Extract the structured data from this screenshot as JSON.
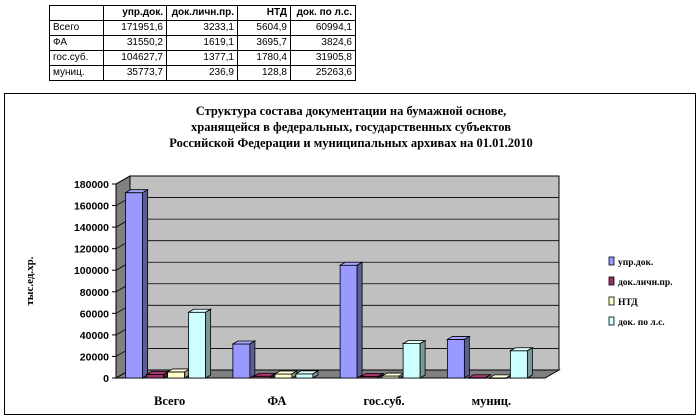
{
  "table": {
    "headers": [
      "",
      "упр.док.",
      "док.личн.пр.",
      "НТД",
      "док. по л.с."
    ],
    "rows": [
      [
        "Всего",
        "171951,6",
        "3233,1",
        "5604,9",
        "60994,1"
      ],
      [
        "ФА",
        "31550,2",
        "1619,1",
        "3695,7",
        "3824,6"
      ],
      [
        "гос.суб.",
        "104627,7",
        "1377,1",
        "1780,4",
        "31905,8"
      ],
      [
        "муниц.",
        "35773,7",
        "236,9",
        "128,8",
        "25263,6"
      ]
    ]
  },
  "chart_data": {
    "type": "bar",
    "title_lines": [
      "Структура состава документации на бумажной основе,",
      "хранящейся в федеральных, государственных субъектов",
      "Российской Федерации и муниципальных архивах на 01.01.2010"
    ],
    "ylabel": "тыс.ед.хр.",
    "xlabel": "",
    "ylim": [
      0,
      180000
    ],
    "yticks": [
      "0",
      "20000",
      "40000",
      "60000",
      "80000",
      "100000",
      "120000",
      "140000",
      "160000",
      "180000"
    ],
    "categories": [
      "Всего",
      "ФА",
      "гос.суб.",
      "муниц."
    ],
    "series": [
      {
        "name": "упр.док.",
        "color": "#9999FF",
        "values": [
          171951.6,
          31550.2,
          104627.7,
          35773.7
        ]
      },
      {
        "name": "док.личн.пр.",
        "color": "#993366",
        "values": [
          3233.1,
          1619.1,
          1377.1,
          236.9
        ]
      },
      {
        "name": "НТД",
        "color": "#FFFFCC",
        "values": [
          5604.9,
          3695.7,
          1780.4,
          128.8
        ]
      },
      {
        "name": "док. по л.с.",
        "color": "#CCFFFF",
        "values": [
          60994.1,
          3824.6,
          31905.8,
          25263.6
        ]
      }
    ],
    "grid": true,
    "legend": "right",
    "plot_background": "#C0C0C0"
  }
}
